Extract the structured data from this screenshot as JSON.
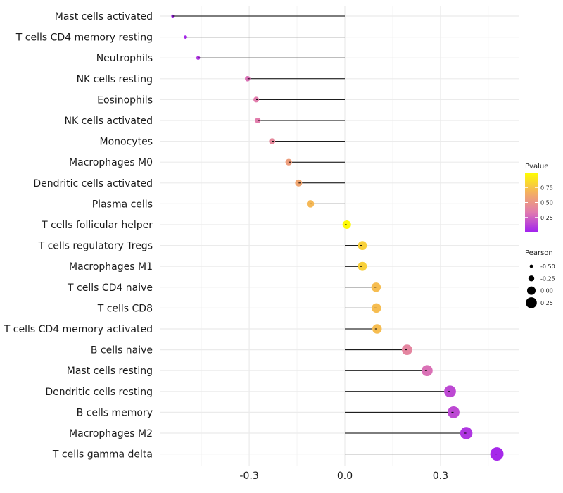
{
  "chart_data": {
    "type": "lollipop",
    "title": "",
    "xlabel": "",
    "ylabel": "",
    "xlim": [
      -0.5,
      0.5
    ],
    "x_ticks": [
      -0.3,
      0.0,
      0.3
    ],
    "x_tick_labels": [
      "-0.3",
      "0.0",
      "0.3"
    ],
    "x_minor_gridlines": [
      -0.45,
      -0.15,
      0.15,
      0.45
    ],
    "categories": [
      "Mast cells activated",
      "T cells CD4 memory resting",
      "Neutrophils",
      "NK cells resting",
      "Eosinophils",
      "NK cells activated",
      "Monocytes",
      "Macrophages M0",
      "Dendritic cells activated",
      "Plasma cells",
      "T cells follicular helper",
      "T cells regulatory  Tregs ",
      "Macrophages M1",
      "T cells CD4 naive",
      "T cells CD8",
      "T cells CD4 memory activated",
      "B cells naive",
      "Mast cells resting",
      "Dendritic cells resting",
      "B cells memory",
      "Macrophages M2",
      "T cells gamma delta"
    ],
    "pearson": [
      -0.54,
      -0.5,
      -0.46,
      -0.305,
      -0.278,
      -0.273,
      -0.228,
      -0.176,
      -0.145,
      -0.108,
      0.006,
      0.055,
      0.055,
      0.098,
      0.099,
      0.101,
      0.195,
      0.258,
      0.33,
      0.341,
      0.381,
      0.477
    ],
    "pvalue": [
      0.02,
      0.03,
      0.08,
      0.3,
      0.35,
      0.35,
      0.42,
      0.55,
      0.6,
      0.7,
      0.98,
      0.8,
      0.8,
      0.72,
      0.72,
      0.72,
      0.4,
      0.3,
      0.15,
      0.15,
      0.08,
      0.03
    ],
    "color_legend": {
      "title": "Pvalue",
      "ticks": [
        0.25,
        0.5,
        0.75
      ],
      "tick_labels": [
        "0.25",
        "0.50",
        "0.75"
      ],
      "range": [
        0.0,
        1.0
      ],
      "colors": [
        "#a020f0",
        "#e07ab0",
        "#f4b060",
        "#ffff00"
      ],
      "placement": "right"
    },
    "size_legend": {
      "title": "Pearson",
      "values": [
        -0.5,
        -0.25,
        0.0,
        0.25
      ],
      "labels": [
        "-0.50",
        "-0.25",
        "0.00",
        "0.25"
      ],
      "placement": "right"
    },
    "gridlines": true
  }
}
